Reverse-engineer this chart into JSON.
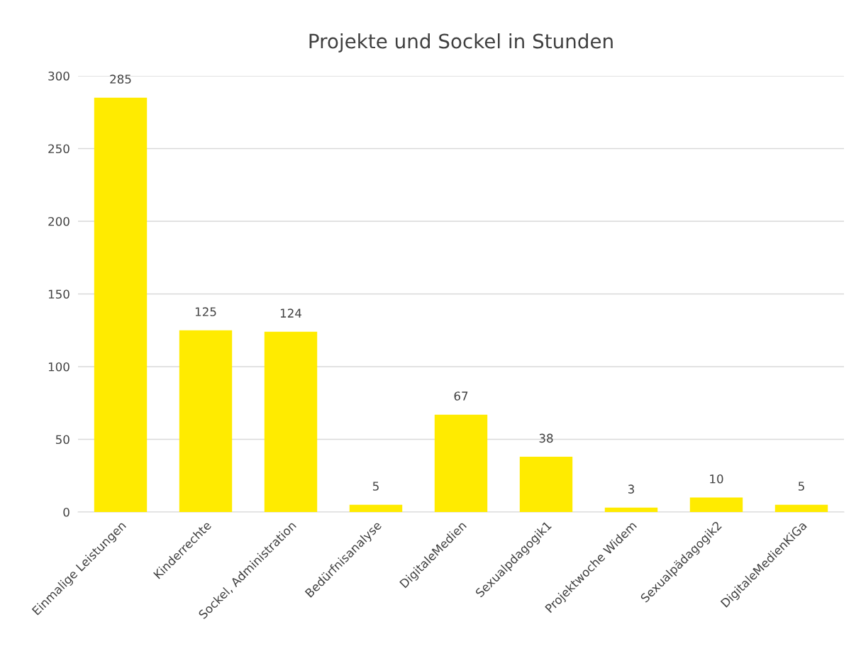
{
  "chart_data": {
    "type": "bar",
    "title": "Projekte und Sockel in Stunden",
    "categories": [
      "Einmalige Leistungen",
      "Kinderrechte",
      "Sockel, Administration",
      "Bedürfnisanalyse",
      "DigitaleMedien",
      "Sexualpdagogik1",
      "Projektwoche Widem",
      "Sexualpädagogik2",
      "DigitaleMedienKiGa"
    ],
    "values": [
      285,
      125,
      124,
      5,
      67,
      38,
      3,
      10,
      5
    ],
    "color": "#ffeb00",
    "ylim": [
      0,
      300
    ],
    "yticks": [
      0,
      50,
      100,
      150,
      200,
      250,
      300
    ],
    "grid": "y",
    "data_labels": true,
    "legend": false
  }
}
